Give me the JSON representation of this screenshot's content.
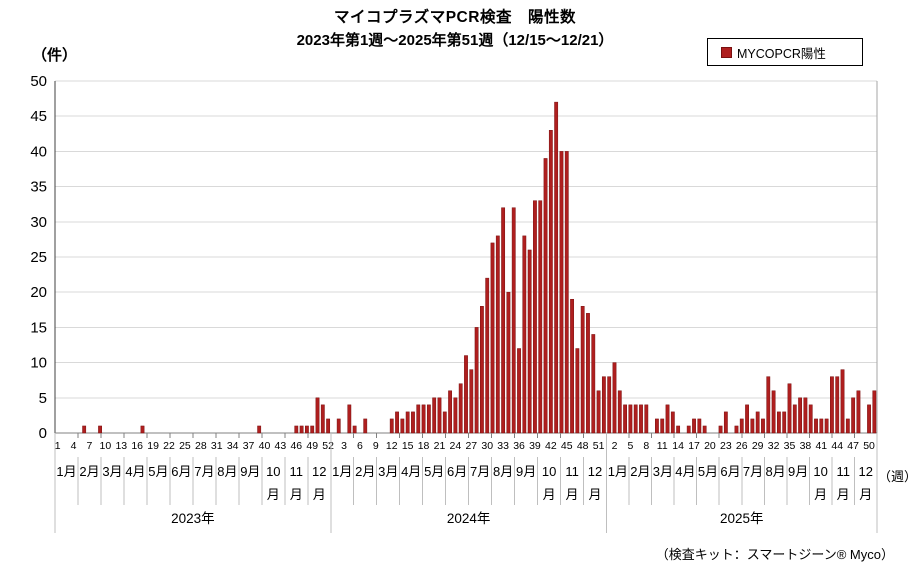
{
  "header": {
    "title": "マイコプラズマPCR検査　陽性数",
    "subtitle": "2023年第1週～2025年第51週（12/15～12/21）"
  },
  "legend": {
    "label": "MYCOPCR陽性"
  },
  "axes": {
    "y_unit": "（件）",
    "x_unit": "（週）"
  },
  "footnote": {
    "text": "（検査キット：スマートジーン® Myco）"
  },
  "chart_data": {
    "type": "bar",
    "title": "マイコプラズマPCR検査　陽性数",
    "subtitle": "2023年第1週～2025年第51週（12/15～12/21）",
    "legend_entry": "MYCOPCR陽性",
    "ylabel": "（件）",
    "xlabel": "（週）",
    "ylim": [
      0,
      50
    ],
    "ytick_step": 5,
    "grid": true,
    "bar_color": "#af1f1f",
    "bar_edge_color": "#7a1010",
    "week_tick_interval": 3,
    "month_labels": [
      "1月",
      "2月",
      "3月",
      "4月",
      "5月",
      "6月",
      "7月",
      "8月",
      "9月",
      "10月",
      "11月",
      "12月"
    ],
    "years": [
      {
        "label": "2023年",
        "weeks": 52,
        "tick_start": 1,
        "values": [
          0,
          0,
          0,
          0,
          0,
          1,
          0,
          0,
          1,
          0,
          0,
          0,
          0,
          0,
          0,
          0,
          1,
          0,
          0,
          0,
          0,
          0,
          0,
          0,
          0,
          0,
          0,
          0,
          0,
          0,
          0,
          0,
          0,
          0,
          0,
          0,
          0,
          0,
          1,
          0,
          0,
          0,
          0,
          0,
          0,
          1,
          1,
          1,
          1,
          5,
          4,
          2
        ]
      },
      {
        "label": "2024年",
        "weeks": 52,
        "tick_start": 3,
        "values": [
          0,
          2,
          0,
          4,
          1,
          0,
          2,
          0,
          0,
          0,
          0,
          2,
          3,
          2,
          3,
          3,
          4,
          4,
          4,
          5,
          5,
          3,
          6,
          5,
          7,
          11,
          9,
          15,
          18,
          22,
          27,
          28,
          32,
          20,
          32,
          12,
          28,
          26,
          33,
          33,
          39,
          43,
          47,
          40,
          40,
          19,
          12,
          18,
          17,
          14,
          6,
          8
        ]
      },
      {
        "label": "2025年",
        "weeks": 51,
        "tick_start": 2,
        "values": [
          8,
          10,
          6,
          4,
          4,
          4,
          4,
          4,
          0,
          2,
          2,
          4,
          3,
          1,
          0,
          1,
          2,
          2,
          1,
          0,
          0,
          1,
          3,
          0,
          1,
          2,
          4,
          2,
          3,
          2,
          8,
          6,
          3,
          3,
          7,
          4,
          5,
          5,
          4,
          2,
          2,
          2,
          8,
          8,
          9,
          2,
          5,
          6,
          0,
          4,
          6
        ]
      }
    ]
  }
}
